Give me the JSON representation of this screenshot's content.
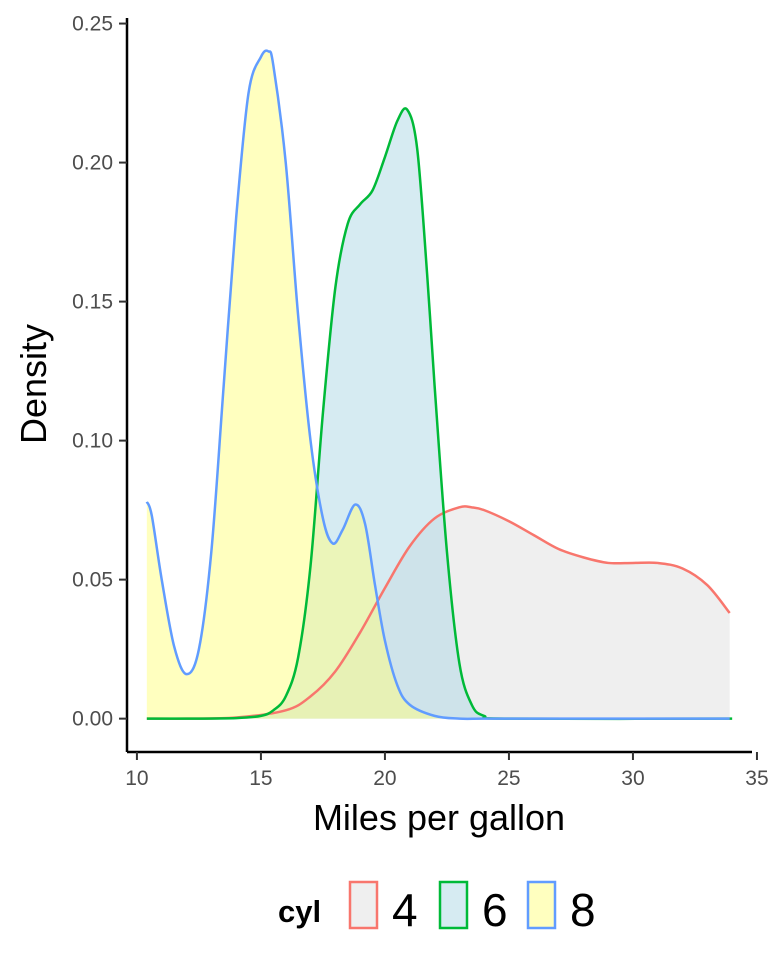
{
  "chart_data": {
    "type": "area",
    "xlabel": "Miles per gallon",
    "ylabel": "Density",
    "xlim": [
      9.6,
      34.8
    ],
    "ylim": [
      -0.012,
      0.252
    ],
    "x_ticks": [
      "10",
      "15",
      "20",
      "25",
      "30",
      "35"
    ],
    "x_tick_values": [
      10,
      15,
      20,
      25,
      30,
      35
    ],
    "y_ticks": [
      "0.00",
      "0.05",
      "0.10",
      "0.15",
      "0.20",
      "0.25"
    ],
    "y_tick_values": [
      0,
      0.05,
      0.1,
      0.15,
      0.2,
      0.25
    ],
    "grid": false,
    "legend": {
      "title": "cyl",
      "position": "bottom"
    },
    "series": [
      {
        "name": "4",
        "line_color": "#F8766D",
        "fill_color": "#E0E0E0",
        "x": [
          10.4,
          12,
          14,
          16,
          17,
          18,
          19,
          20,
          21,
          22,
          23,
          23.5,
          24,
          25,
          26,
          27,
          28,
          29,
          30,
          31,
          32,
          33,
          33.9
        ],
        "y": [
          0.0,
          0.0,
          0.0004,
          0.003,
          0.008,
          0.017,
          0.031,
          0.047,
          0.062,
          0.072,
          0.076,
          0.076,
          0.075,
          0.071,
          0.066,
          0.061,
          0.058,
          0.056,
          0.056,
          0.056,
          0.054,
          0.048,
          0.038
        ]
      },
      {
        "name": "6",
        "line_color": "#00BA38",
        "fill_color": "#ADD8E6",
        "x": [
          10.4,
          12,
          14,
          15,
          15.5,
          16,
          16.5,
          17,
          17.5,
          18,
          18.5,
          19,
          19.5,
          20,
          20.5,
          20.9,
          21.3,
          21.7,
          22,
          22.5,
          23,
          23.5,
          24,
          25,
          34
        ],
        "y": [
          0.0,
          0.0,
          0.0002,
          0.001,
          0.003,
          0.008,
          0.022,
          0.055,
          0.11,
          0.155,
          0.178,
          0.185,
          0.19,
          0.202,
          0.215,
          0.219,
          0.205,
          0.16,
          0.12,
          0.06,
          0.02,
          0.005,
          0.001,
          0.0,
          0.0
        ]
      },
      {
        "name": "8",
        "line_color": "#619CFF",
        "fill_color": "#FFFF80",
        "x": [
          10.4,
          10.6,
          11,
          11.5,
          12,
          12.5,
          13,
          13.5,
          14,
          14.5,
          15,
          15.3,
          15.5,
          16,
          16.5,
          17,
          17.5,
          17.9,
          18.3,
          18.8,
          19.2,
          19.6,
          20,
          20.5,
          21,
          22,
          23,
          24,
          26,
          30,
          33.9
        ],
        "y": [
          0.078,
          0.073,
          0.05,
          0.026,
          0.016,
          0.025,
          0.06,
          0.12,
          0.18,
          0.225,
          0.238,
          0.24,
          0.235,
          0.2,
          0.145,
          0.1,
          0.072,
          0.063,
          0.068,
          0.077,
          0.07,
          0.048,
          0.028,
          0.012,
          0.005,
          0.001,
          0.0,
          0.0,
          0.0,
          0.0,
          0.0
        ]
      }
    ]
  }
}
